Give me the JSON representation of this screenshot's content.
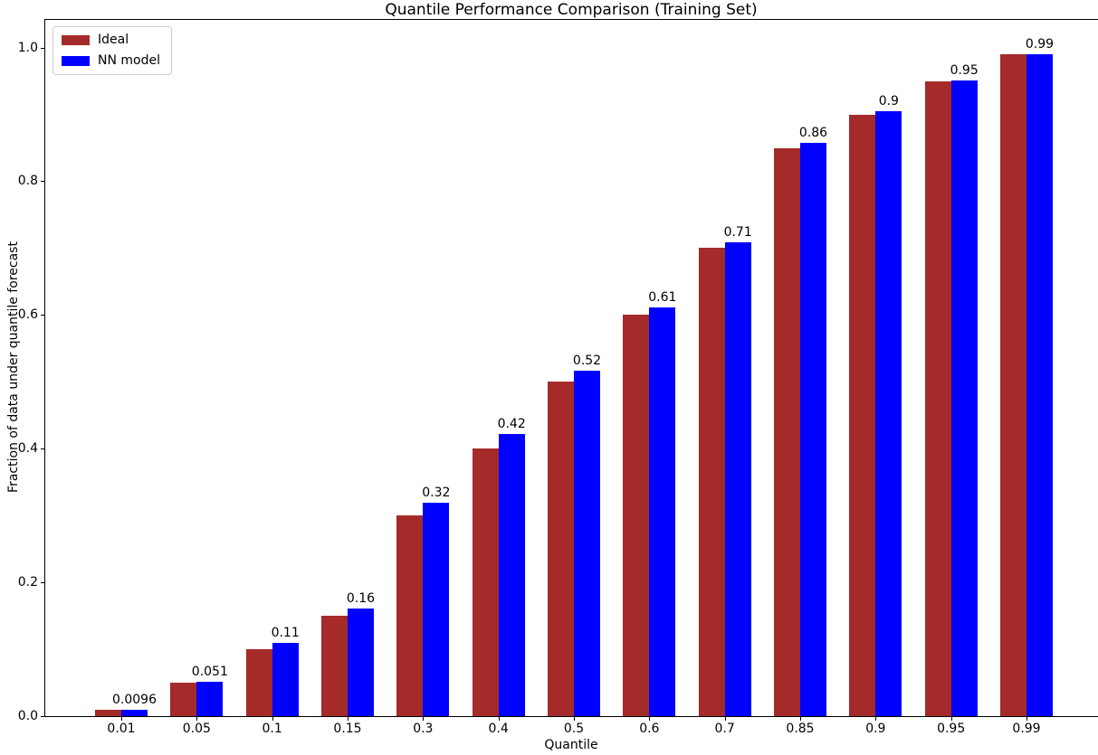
{
  "chart_data": {
    "type": "bar",
    "title": "Quantile Performance Comparison (Training Set)",
    "xlabel": "Quantile",
    "ylabel": "Fraction of data under quantile forecast",
    "categories": [
      "0.01",
      "0.05",
      "0.1",
      "0.15",
      "0.3",
      "0.4",
      "0.5",
      "0.6",
      "0.7",
      "0.85",
      "0.9",
      "0.95",
      "0.99"
    ],
    "series": [
      {
        "name": "Ideal",
        "color": "#a52a2a",
        "values": [
          0.01,
          0.05,
          0.1,
          0.15,
          0.3,
          0.4,
          0.5,
          0.6,
          0.7,
          0.85,
          0.9,
          0.95,
          0.99
        ]
      },
      {
        "name": "NN model",
        "color": "#0000ff",
        "values": [
          0.0096,
          0.051,
          0.109,
          0.161,
          0.319,
          0.422,
          0.516,
          0.611,
          0.709,
          0.857,
          0.905,
          0.951,
          0.99
        ],
        "bar_labels": [
          "0.0096",
          "0.051",
          "0.11",
          "0.16",
          "0.32",
          "0.42",
          "0.52",
          "0.61",
          "0.71",
          "0.86",
          "0.9",
          "0.95",
          "0.99"
        ]
      }
    ],
    "yticks": [
      0.0,
      0.2,
      0.4,
      0.6,
      0.8,
      1.0
    ],
    "ytick_labels": [
      "0.0",
      "0.2",
      "0.4",
      "0.6",
      "0.8",
      "1.0"
    ],
    "ylim": [
      0,
      1.0414
    ],
    "grid": false,
    "legend_position": "upper left",
    "axis_color": "#000000",
    "text_color": "#000000",
    "background": "#ffffff"
  }
}
